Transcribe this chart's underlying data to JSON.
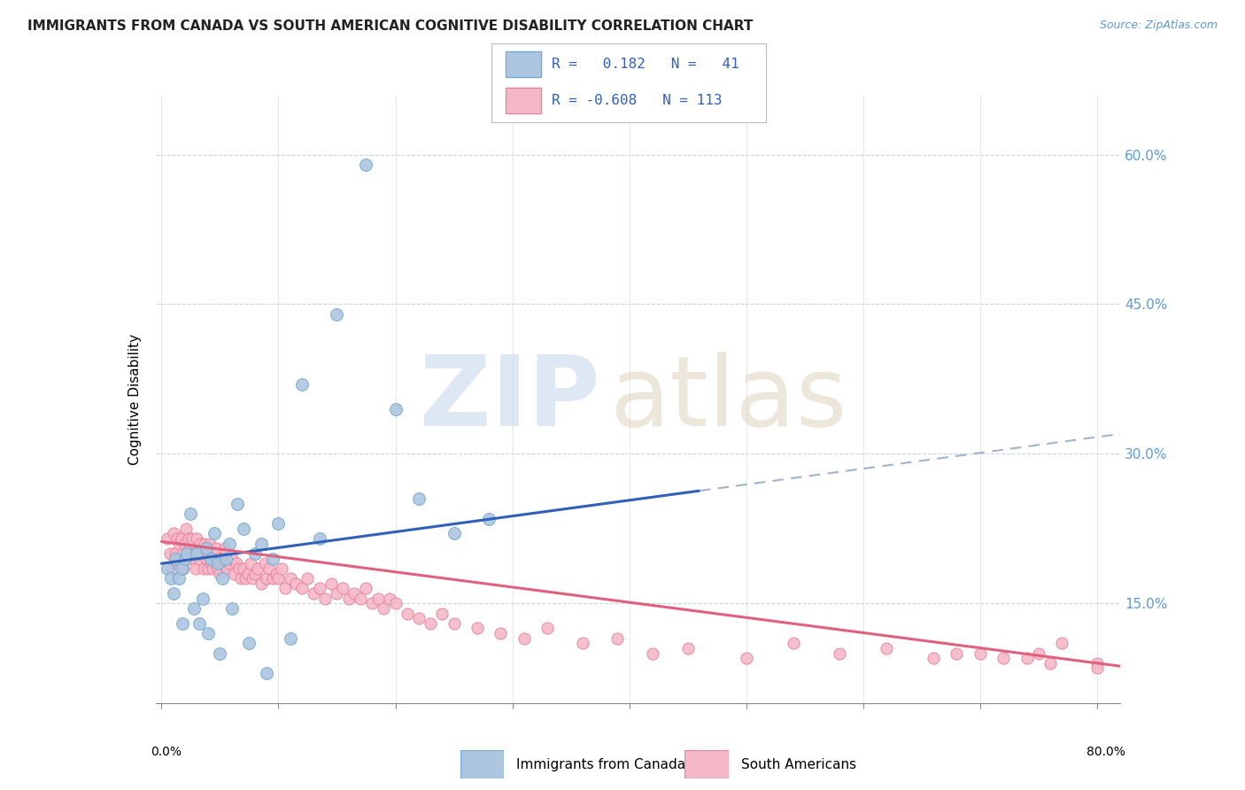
{
  "title": "IMMIGRANTS FROM CANADA VS SOUTH AMERICAN COGNITIVE DISABILITY CORRELATION CHART",
  "source": "Source: ZipAtlas.com",
  "ylabel": "Cognitive Disability",
  "yticks": [
    "15.0%",
    "30.0%",
    "45.0%",
    "60.0%"
  ],
  "ytick_vals": [
    0.15,
    0.3,
    0.45,
    0.6
  ],
  "xlim": [
    -0.005,
    0.82
  ],
  "ylim": [
    0.05,
    0.66
  ],
  "legend_canada_R": "0.182",
  "legend_canada_N": "41",
  "legend_sa_R": "-0.608",
  "legend_sa_N": "113",
  "canada_color": "#adc6e0",
  "canada_edge": "#6fa8d0",
  "sa_color": "#f5b8c8",
  "sa_edge": "#e8809a",
  "line_canada_color": "#3060b8",
  "line_sa_color": "#e06080",
  "line_dashed_color": "#a0b4cc",
  "background_color": "#ffffff",
  "canada_x": [
    0.005,
    0.008,
    0.01,
    0.012,
    0.015,
    0.017,
    0.018,
    0.02,
    0.022,
    0.025,
    0.028,
    0.03,
    0.032,
    0.035,
    0.038,
    0.04,
    0.042,
    0.045,
    0.048,
    0.05,
    0.052,
    0.055,
    0.058,
    0.06,
    0.065,
    0.07,
    0.075,
    0.08,
    0.085,
    0.09,
    0.095,
    0.1,
    0.11,
    0.12,
    0.135,
    0.15,
    0.175,
    0.2,
    0.22,
    0.25,
    0.28
  ],
  "canada_y": [
    0.185,
    0.175,
    0.16,
    0.195,
    0.175,
    0.185,
    0.13,
    0.195,
    0.2,
    0.24,
    0.145,
    0.2,
    0.13,
    0.155,
    0.205,
    0.12,
    0.195,
    0.22,
    0.19,
    0.1,
    0.175,
    0.195,
    0.21,
    0.145,
    0.25,
    0.225,
    0.11,
    0.2,
    0.21,
    0.08,
    0.195,
    0.23,
    0.115,
    0.37,
    0.215,
    0.44,
    0.59,
    0.345,
    0.255,
    0.22,
    0.235
  ],
  "sa_x": [
    0.005,
    0.007,
    0.009,
    0.01,
    0.012,
    0.013,
    0.014,
    0.015,
    0.016,
    0.017,
    0.018,
    0.019,
    0.02,
    0.021,
    0.022,
    0.023,
    0.024,
    0.025,
    0.026,
    0.027,
    0.028,
    0.029,
    0.03,
    0.032,
    0.033,
    0.034,
    0.035,
    0.036,
    0.037,
    0.038,
    0.039,
    0.04,
    0.041,
    0.042,
    0.043,
    0.044,
    0.045,
    0.046,
    0.047,
    0.048,
    0.049,
    0.05,
    0.052,
    0.054,
    0.056,
    0.058,
    0.06,
    0.062,
    0.064,
    0.066,
    0.068,
    0.07,
    0.072,
    0.074,
    0.076,
    0.078,
    0.08,
    0.082,
    0.085,
    0.088,
    0.09,
    0.092,
    0.095,
    0.098,
    0.1,
    0.103,
    0.106,
    0.11,
    0.115,
    0.12,
    0.125,
    0.13,
    0.135,
    0.14,
    0.145,
    0.15,
    0.155,
    0.16,
    0.165,
    0.17,
    0.175,
    0.18,
    0.185,
    0.19,
    0.195,
    0.2,
    0.21,
    0.22,
    0.23,
    0.24,
    0.25,
    0.27,
    0.29,
    0.31,
    0.33,
    0.36,
    0.39,
    0.42,
    0.45,
    0.5,
    0.54,
    0.58,
    0.62,
    0.66,
    0.7,
    0.74,
    0.77,
    0.8,
    0.68,
    0.72,
    0.76,
    0.8,
    0.75
  ],
  "sa_y": [
    0.215,
    0.2,
    0.185,
    0.22,
    0.2,
    0.215,
    0.19,
    0.21,
    0.195,
    0.215,
    0.2,
    0.185,
    0.21,
    0.225,
    0.195,
    0.215,
    0.205,
    0.2,
    0.215,
    0.195,
    0.2,
    0.185,
    0.215,
    0.195,
    0.21,
    0.2,
    0.205,
    0.185,
    0.21,
    0.195,
    0.2,
    0.185,
    0.21,
    0.19,
    0.2,
    0.185,
    0.2,
    0.19,
    0.205,
    0.185,
    0.195,
    0.18,
    0.195,
    0.205,
    0.185,
    0.19,
    0.195,
    0.18,
    0.19,
    0.185,
    0.175,
    0.185,
    0.175,
    0.18,
    0.19,
    0.175,
    0.18,
    0.185,
    0.17,
    0.19,
    0.175,
    0.185,
    0.175,
    0.18,
    0.175,
    0.185,
    0.165,
    0.175,
    0.17,
    0.165,
    0.175,
    0.16,
    0.165,
    0.155,
    0.17,
    0.16,
    0.165,
    0.155,
    0.16,
    0.155,
    0.165,
    0.15,
    0.155,
    0.145,
    0.155,
    0.15,
    0.14,
    0.135,
    0.13,
    0.14,
    0.13,
    0.125,
    0.12,
    0.115,
    0.125,
    0.11,
    0.115,
    0.1,
    0.105,
    0.095,
    0.11,
    0.1,
    0.105,
    0.095,
    0.1,
    0.095,
    0.11,
    0.09,
    0.1,
    0.095,
    0.09,
    0.085,
    0.1
  ],
  "canada_line_x0": 0.0,
  "canada_line_x_solid_end": 0.46,
  "canada_line_x1": 0.82,
  "canada_line_y0": 0.19,
  "canada_line_y1": 0.32,
  "sa_line_x0": 0.0,
  "sa_line_x1": 0.82,
  "sa_line_y0": 0.212,
  "sa_line_y1": 0.087
}
